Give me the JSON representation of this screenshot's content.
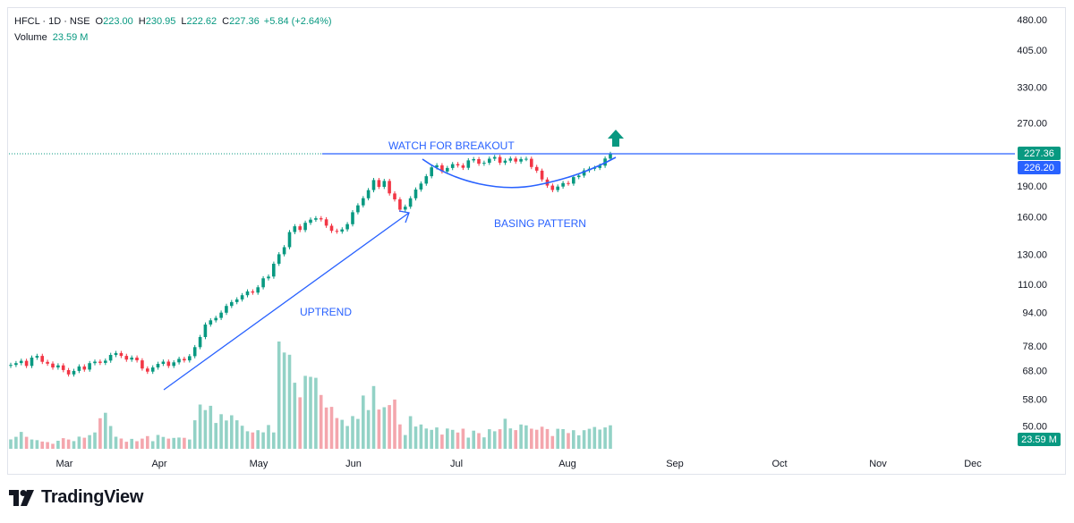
{
  "legend": {
    "symbol": "HFCL · 1D · NSE",
    "open_label": "O",
    "open": "223.00",
    "high_label": "H",
    "high": "230.95",
    "low_label": "L",
    "low": "222.62",
    "close_label": "C",
    "close": "227.36",
    "change": "+5.84 (+2.64%)",
    "volume_label": "Volume",
    "volume": "23.59 M"
  },
  "footer": {
    "brand": "TradingView"
  },
  "colors": {
    "up": "#089981",
    "down": "#f23645",
    "line": "#2962ff",
    "vol_up": "#93d2c6",
    "vol_down": "#f4a6ad"
  },
  "chart_data": {
    "type": "candlestick",
    "scale": "log",
    "y_ticks": [
      "480.00",
      "405.00",
      "330.00",
      "270.00",
      "190.00",
      "160.00",
      "130.00",
      "110.00",
      "94.00",
      "78.00",
      "68.00",
      "58.00",
      "50.00"
    ],
    "x_ticks": [
      "Mar",
      "Apr",
      "May",
      "Jun",
      "Jul",
      "Aug",
      "Sep",
      "Oct",
      "Nov",
      "Dec"
    ],
    "price_labels": {
      "last": "227.36",
      "resistance": "226.20",
      "volume": "23.59 M"
    },
    "annotations": [
      "WATCH FOR BREAKOUT",
      "BASING PATTERN",
      "UPTREND"
    ],
    "resistance_level": 226.2,
    "closes": [
      70.2,
      70.9,
      71.8,
      69.8,
      73.1,
      73.8,
      71.4,
      70.7,
      69.2,
      70.0,
      68.2,
      66.6,
      67.9,
      69.6,
      68.4,
      70.9,
      71.5,
      71.0,
      71.9,
      74.2,
      75.0,
      73.8,
      72.3,
      73.1,
      72.0,
      68.8,
      67.6,
      69.2,
      70.6,
      71.5,
      69.8,
      71.2,
      72.6,
      72.0,
      73.7,
      77.5,
      82.0,
      87.9,
      90.0,
      91.2,
      93.9,
      97.5,
      99.6,
      101.1,
      103.5,
      105.7,
      105.0,
      108.2,
      113.7,
      114.8,
      123.3,
      130.0,
      135.2,
      147.1,
      151.9,
      148.8,
      154.9,
      157.6,
      158.9,
      157.9,
      152.4,
      148.1,
      147.5,
      149.3,
      153.7,
      164.3,
      170.7,
      177.6,
      185.8,
      196.5,
      189.2,
      195.5,
      182.4,
      176.5,
      166.7,
      169.4,
      177.5,
      186.4,
      192.7,
      200.8,
      210.9,
      213.3,
      206.2,
      210.2,
      214.7,
      213.2,
      210.4,
      219.3,
      220.8,
      215.3,
      216.3,
      221.3,
      223.4,
      216.4,
      218.9,
      221.5,
      217.8,
      220.9,
      221.2,
      211.3,
      207.0,
      197.1,
      190.5,
      185.9,
      189.5,
      193.2,
      192.7,
      199.8,
      201.5,
      207.4,
      209.3,
      210.3,
      212.8,
      221.5,
      227.4
    ],
    "volumes_m": [
      9.4,
      12.0,
      16.9,
      12.0,
      9.3,
      8.7,
      7.3,
      6.7,
      5.0,
      8.1,
      10.7,
      9.3,
      7.7,
      12.2,
      11.1,
      13.7,
      16.4,
      30.6,
      36.1,
      22.8,
      12.1,
      10.3,
      7.1,
      9.9,
      7.6,
      10.2,
      12.7,
      7.6,
      13.9,
      11.9,
      10.2,
      10.9,
      11.3,
      11.0,
      9.3,
      28.6,
      44.3,
      38.8,
      43.1,
      25.9,
      34.7,
      28.4,
      33.6,
      28.6,
      23.1,
      17.6,
      16.4,
      18.6,
      16.5,
      23.8,
      16.4,
      107.5,
      96.5,
      94.2,
      66.2,
      51.6,
      73.1,
      72.1,
      71.1,
      53.9,
      41.4,
      42.0,
      30.8,
      29.0,
      22.8,
      32.8,
      29.9,
      53.4,
      38.8,
      62.9,
      39.3,
      41.7,
      43.8,
      49.4,
      24.5,
      13.8,
      32.7,
      22.3,
      24.4,
      20.3,
      19.0,
      21.4,
      14.2,
      20.3,
      19.0,
      16.3,
      20.2,
      11.2,
      18.2,
      15.7,
      11.5,
      19.6,
      17.6,
      19.6,
      30.1,
      20.4,
      18.7,
      24.4,
      23.5,
      20.2,
      19.1,
      22.1,
      19.8,
      12.8,
      20.1,
      19.7,
      15.8,
      18.6,
      13.5,
      18.6,
      20.1,
      21.9,
      19.3,
      21.4,
      23.6
    ]
  }
}
